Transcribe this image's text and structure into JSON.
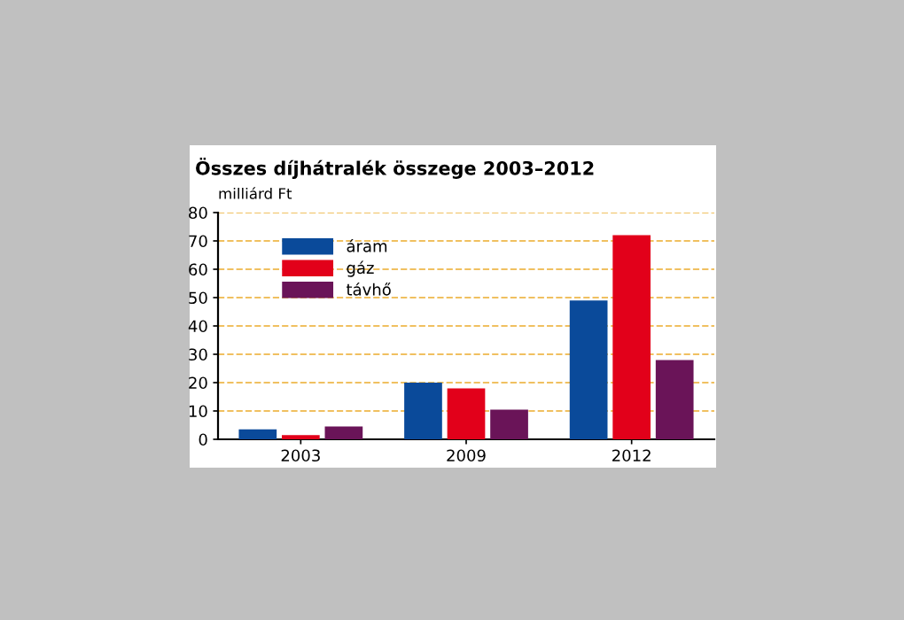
{
  "chart_data": {
    "type": "bar",
    "title": "Összes díjhátralék összege 2003–2012",
    "ylabel": "milliárd Ft",
    "categories": [
      "2003",
      "2009",
      "2012"
    ],
    "series": [
      {
        "name": "áram",
        "color": "#0a4a9a",
        "values": [
          3.5,
          20,
          49
        ]
      },
      {
        "name": "gáz",
        "color": "#e2001a",
        "values": [
          1.5,
          18,
          72
        ]
      },
      {
        "name": "távhő",
        "color": "#6a1458",
        "values": [
          4.5,
          10.5,
          28
        ]
      }
    ],
    "ylim": [
      0,
      80
    ],
    "yticks": [
      0,
      10,
      20,
      30,
      40,
      50,
      60,
      70,
      80
    ],
    "grid": "y",
    "legend": "top left"
  }
}
